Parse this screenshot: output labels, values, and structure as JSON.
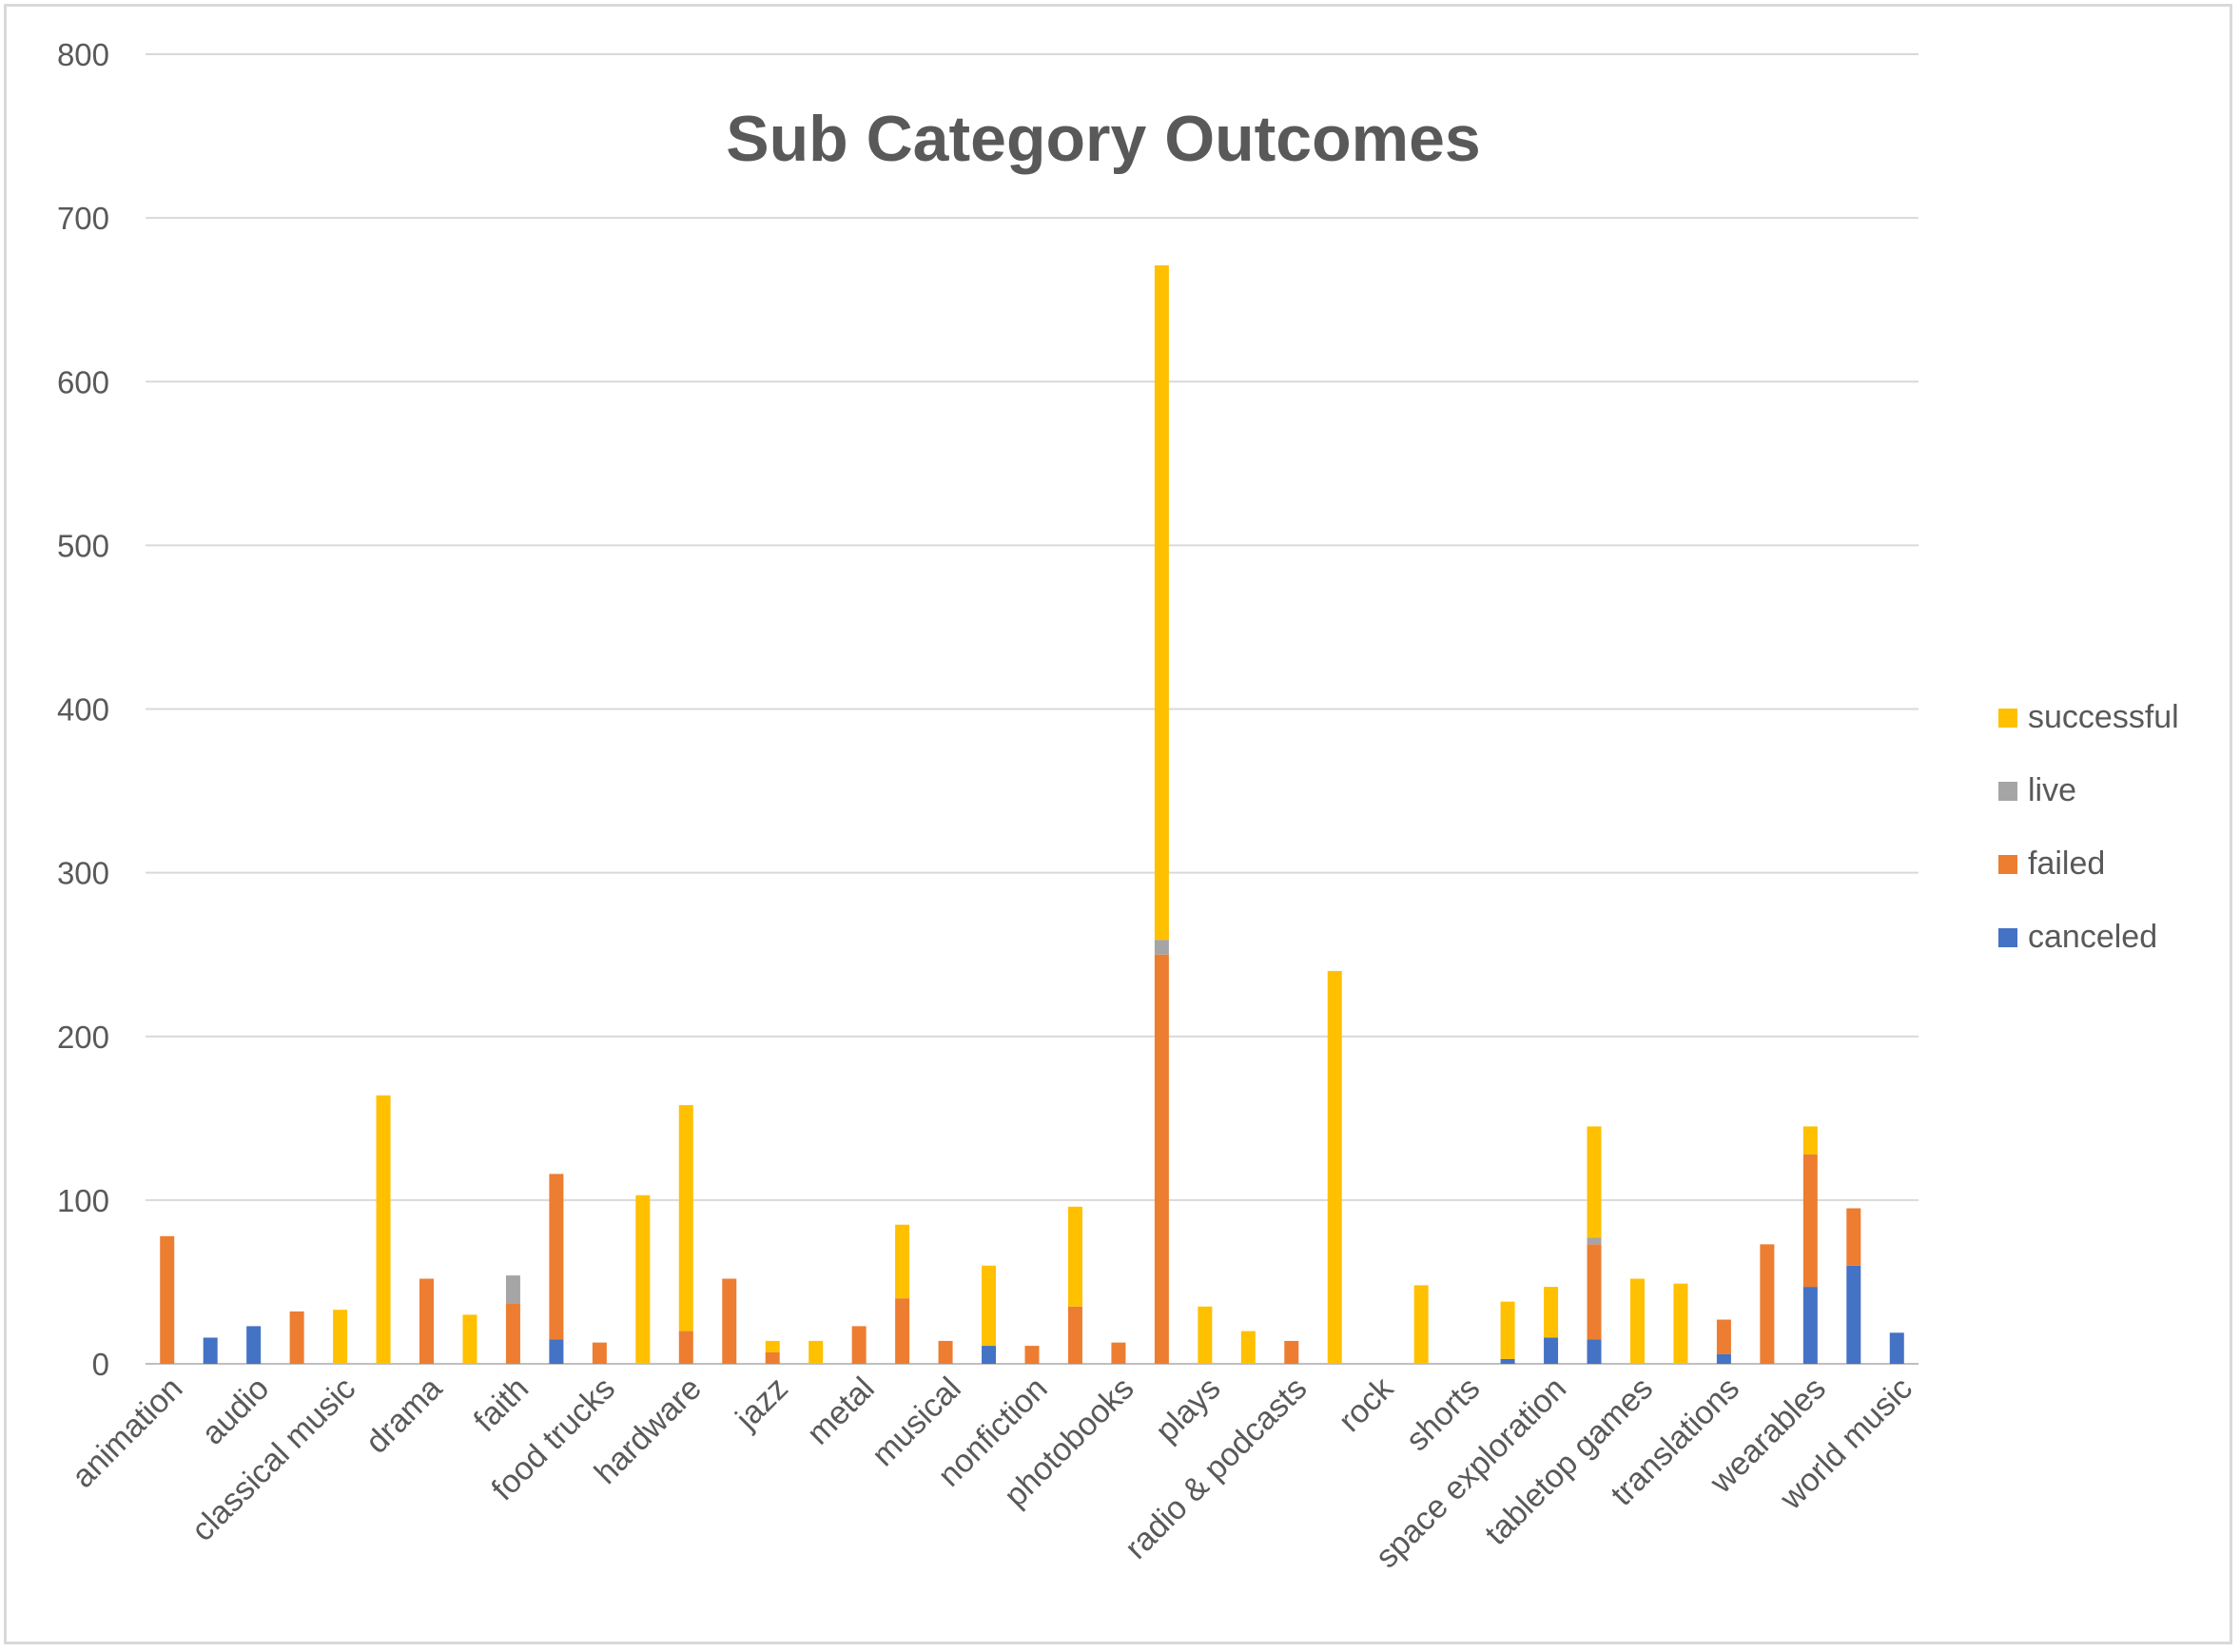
{
  "chart_data": {
    "type": "bar",
    "stacked": true,
    "title": "Sub Category Outcomes",
    "xlabel": "",
    "ylabel": "",
    "ylim": [
      0,
      800
    ],
    "yticks": [
      0,
      100,
      200,
      300,
      400,
      500,
      600,
      700,
      800
    ],
    "grid": true,
    "legend_position": "right",
    "labeled_categories": [
      "animation",
      "audio",
      "classical music",
      "drama",
      "faith",
      "food trucks",
      "hardware",
      "jazz",
      "metal",
      "musical",
      "nonfiction",
      "photobooks",
      "plays",
      "radio & podcasts",
      "rock",
      "shorts",
      "space exploration",
      "tabletop games",
      "translations",
      "wearables",
      "world music"
    ],
    "slot_count": 41,
    "series": [
      {
        "name": "canceled",
        "color": "#4472c4",
        "values": [
          0,
          16,
          23,
          0,
          0,
          0,
          0,
          0,
          0,
          15,
          0,
          0,
          0,
          0,
          0,
          0,
          0,
          0,
          0,
          11,
          0,
          0,
          0,
          0,
          0,
          0,
          0,
          0,
          0,
          0,
          0,
          3,
          16,
          15,
          0,
          0,
          6,
          0,
          47,
          60,
          19
        ]
      },
      {
        "name": "failed",
        "color": "#ed7d31",
        "values": [
          78,
          0,
          0,
          32,
          0,
          0,
          52,
          0,
          37,
          101,
          13,
          0,
          20,
          52,
          7,
          0,
          23,
          40,
          14,
          0,
          11,
          35,
          13,
          250,
          0,
          0,
          14,
          0,
          0,
          0,
          0,
          0,
          0,
          58,
          0,
          0,
          21,
          73,
          81,
          35,
          0
        ]
      },
      {
        "name": "live",
        "color": "#a5a5a5",
        "values": [
          0,
          0,
          0,
          0,
          0,
          0,
          0,
          0,
          17,
          0,
          0,
          0,
          0,
          0,
          0,
          0,
          0,
          0,
          0,
          0,
          0,
          0,
          0,
          9,
          0,
          0,
          0,
          0,
          0,
          0,
          0,
          0,
          0,
          4,
          0,
          0,
          0,
          0,
          0,
          0,
          0
        ]
      },
      {
        "name": "successful",
        "color": "#ffc000",
        "values": [
          0,
          0,
          0,
          0,
          33,
          164,
          0,
          30,
          0,
          0,
          0,
          103,
          138,
          0,
          7,
          14,
          0,
          45,
          0,
          49,
          0,
          61,
          0,
          412,
          35,
          20,
          0,
          240,
          0,
          48,
          0,
          35,
          31,
          68,
          52,
          49,
          0,
          0,
          17,
          0,
          0
        ]
      }
    ]
  }
}
